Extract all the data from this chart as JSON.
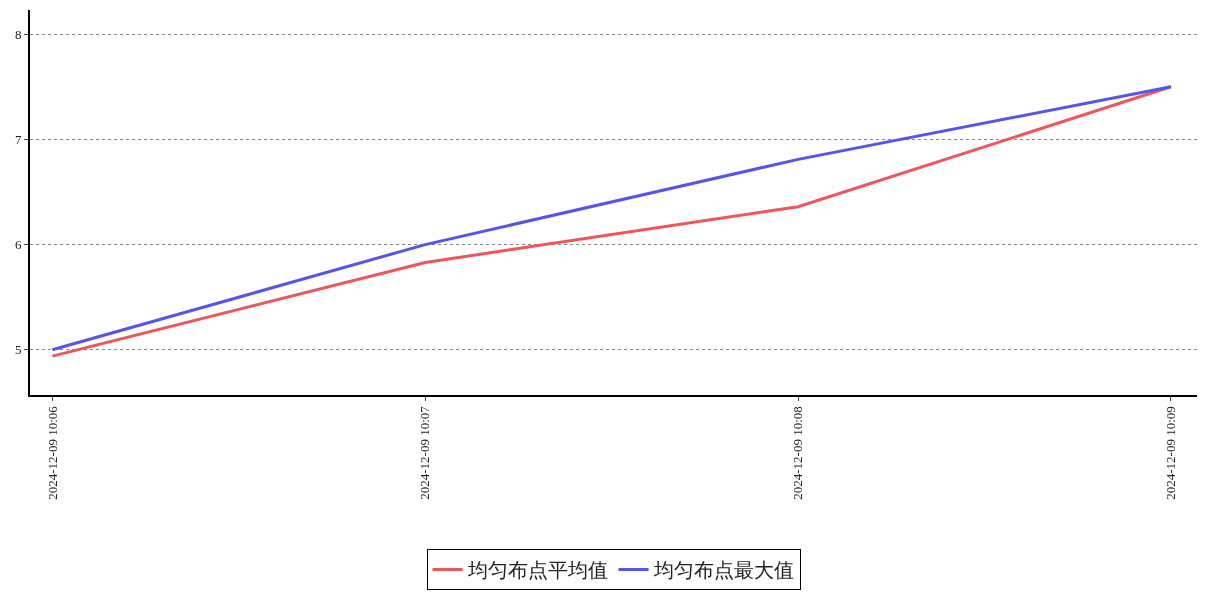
{
  "chart_data": {
    "type": "line",
    "categories": [
      "2024-12-09 10:06",
      "2024-12-09 10:07",
      "2024-12-09 10:08",
      "2024-12-09 10:09"
    ],
    "series": [
      {
        "name": "均匀布点平均值",
        "color": "#f0555a",
        "values": [
          4.94,
          5.83,
          6.36,
          7.5
        ]
      },
      {
        "name": "均匀布点最大值",
        "color": "#5555ee",
        "values": [
          5.0,
          6.0,
          6.81,
          7.5
        ]
      }
    ],
    "ylim": [
      4.57,
      8.23
    ],
    "yticks": [
      5,
      6,
      7,
      8
    ],
    "grid": "y",
    "legend": "bottom",
    "marker": "none",
    "line_style": "solid"
  }
}
